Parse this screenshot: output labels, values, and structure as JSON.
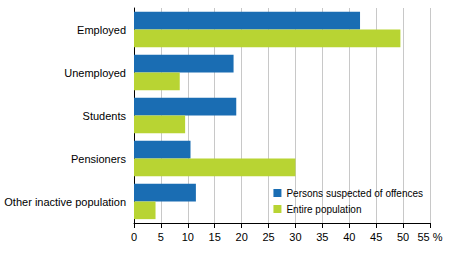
{
  "chart_data": {
    "type": "bar",
    "orientation": "horizontal",
    "categories": [
      "Employed",
      "Unemployed",
      "Students",
      "Pensioners",
      "Other inactive population"
    ],
    "series": [
      {
        "name": "Persons suspected of offences",
        "color": "#1a6db3",
        "values": [
          42,
          18.5,
          19,
          10.5,
          11.5
        ]
      },
      {
        "name": "Entire population",
        "color": "#b8d433",
        "values": [
          49.5,
          8.5,
          9.5,
          30,
          4
        ]
      }
    ],
    "xlim": [
      0,
      55
    ],
    "xticks": [
      0,
      5,
      10,
      15,
      20,
      25,
      30,
      35,
      40,
      45,
      50,
      {
        "value": 55,
        "label": "55 %"
      }
    ],
    "grid": true,
    "legend": "lower right"
  }
}
